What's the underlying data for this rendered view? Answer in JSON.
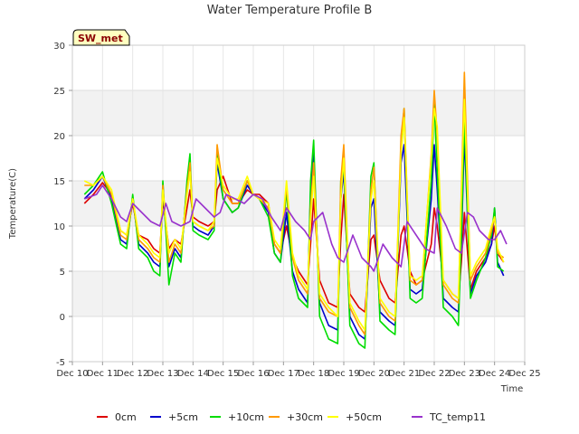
{
  "chart_data": {
    "type": "line",
    "title": "Water Temperature Profile B",
    "xlabel": "Time",
    "ylabel": "Temperature(C)",
    "badge": "SW_met",
    "ylim": [
      -5,
      30
    ],
    "xlim": [
      10,
      25
    ],
    "yticks": [
      -5,
      0,
      5,
      10,
      15,
      20,
      25,
      30
    ],
    "xticks": [
      {
        "value": 10,
        "label": "Dec 10"
      },
      {
        "value": 11,
        "label": "Dec 11"
      },
      {
        "value": 12,
        "label": "Dec 12"
      },
      {
        "value": 13,
        "label": "Dec 13"
      },
      {
        "value": 14,
        "label": "Dec 14"
      },
      {
        "value": 15,
        "label": "Dec 15"
      },
      {
        "value": 16,
        "label": "Dec 16"
      },
      {
        "value": 17,
        "label": "Dec 17"
      },
      {
        "value": 18,
        "label": "Dec 18"
      },
      {
        "value": 19,
        "label": "Dec 19"
      },
      {
        "value": 20,
        "label": "Dec 20"
      },
      {
        "value": 21,
        "label": "Dec 21"
      },
      {
        "value": 22,
        "label": "Dec 22"
      },
      {
        "value": 23,
        "label": "Dec 23"
      },
      {
        "value": 24,
        "label": "Dec 24"
      },
      {
        "value": 25,
        "label": "Dec 25"
      }
    ],
    "grid": true,
    "legend_position": "bottom",
    "series": [
      {
        "name": "0cm",
        "color": "#dd0000",
        "x": [
          10.4,
          10.7,
          11.0,
          11.3,
          11.6,
          11.8,
          12.0,
          12.2,
          12.5,
          12.7,
          12.9,
          13.0,
          13.2,
          13.4,
          13.6,
          13.8,
          13.9,
          14.0,
          14.2,
          14.5,
          14.7,
          14.8,
          15.0,
          15.3,
          15.5,
          15.8,
          16.0,
          16.2,
          16.5,
          16.7,
          16.9,
          17.1,
          17.3,
          17.5,
          17.8,
          17.9,
          18.0,
          18.2,
          18.5,
          18.8,
          18.9,
          19.0,
          19.2,
          19.5,
          19.7,
          19.9,
          20.0,
          20.2,
          20.5,
          20.7,
          20.9,
          21.0,
          21.2,
          21.4,
          21.6,
          21.9,
          22.0,
          22.1,
          22.3,
          22.6,
          22.8,
          22.9,
          23.0,
          23.2,
          23.4,
          23.7,
          23.9,
          24.0,
          24.1,
          24.3
        ],
        "y": [
          12.5,
          13.5,
          14.8,
          13.5,
          9.5,
          9.0,
          12.5,
          9.0,
          8.5,
          7.5,
          7.0,
          13.0,
          7.5,
          8.5,
          8.0,
          12.0,
          14.0,
          11.0,
          10.5,
          10.0,
          10.5,
          14.0,
          15.5,
          12.5,
          12.5,
          14.0,
          13.5,
          13.5,
          12.5,
          8.0,
          7.0,
          10.0,
          6.5,
          5.0,
          3.5,
          8.0,
          13.0,
          4.0,
          1.5,
          1.0,
          8.5,
          13.5,
          2.5,
          1.0,
          0.5,
          8.5,
          9.0,
          4.0,
          2.0,
          1.5,
          9.0,
          10.0,
          5.0,
          3.5,
          4.0,
          8.0,
          12.0,
          10.0,
          4.0,
          2.5,
          2.0,
          6.0,
          11.5,
          3.0,
          5.0,
          6.5,
          8.0,
          10.0,
          7.0,
          6.0
        ]
      },
      {
        "name": "+5cm",
        "color": "#0000cc",
        "x": [
          10.4,
          10.7,
          11.0,
          11.3,
          11.6,
          11.8,
          12.0,
          12.2,
          12.5,
          12.7,
          12.9,
          13.0,
          13.2,
          13.4,
          13.6,
          13.8,
          13.9,
          14.0,
          14.2,
          14.5,
          14.7,
          14.8,
          15.0,
          15.3,
          15.5,
          15.8,
          16.0,
          16.2,
          16.5,
          16.7,
          16.9,
          17.1,
          17.3,
          17.5,
          17.8,
          17.9,
          18.0,
          18.2,
          18.5,
          18.8,
          18.9,
          19.0,
          19.2,
          19.5,
          19.7,
          19.9,
          20.0,
          20.2,
          20.5,
          20.7,
          20.9,
          21.0,
          21.2,
          21.4,
          21.6,
          21.9,
          22.0,
          22.1,
          22.3,
          22.6,
          22.8,
          22.9,
          23.0,
          23.2,
          23.4,
          23.7,
          23.9,
          24.0,
          24.1,
          24.3
        ],
        "y": [
          13.0,
          14.0,
          15.5,
          13.0,
          8.5,
          8.0,
          13.0,
          8.0,
          7.0,
          6.0,
          5.5,
          14.0,
          5.5,
          7.5,
          6.5,
          14.5,
          16.5,
          10.0,
          9.5,
          9.0,
          10.0,
          17.0,
          13.0,
          11.5,
          12.0,
          14.5,
          13.5,
          13.0,
          11.5,
          7.0,
          6.0,
          11.5,
          5.0,
          3.0,
          1.5,
          14.0,
          18.0,
          1.5,
          -1.0,
          -1.5,
          13.0,
          16.0,
          0.0,
          -2.0,
          -2.5,
          12.0,
          13.0,
          0.5,
          -0.5,
          -1.0,
          17.0,
          19.0,
          3.0,
          2.5,
          3.0,
          13.0,
          19.0,
          14.0,
          2.0,
          1.0,
          0.5,
          8.0,
          20.0,
          2.5,
          4.5,
          6.0,
          8.0,
          12.0,
          6.0,
          4.5
        ]
      },
      {
        "name": "+10cm",
        "color": "#00dd00",
        "x": [
          10.4,
          10.7,
          11.0,
          11.3,
          11.6,
          11.8,
          12.0,
          12.2,
          12.5,
          12.7,
          12.9,
          13.0,
          13.2,
          13.4,
          13.6,
          13.8,
          13.9,
          14.0,
          14.2,
          14.5,
          14.7,
          14.8,
          15.0,
          15.3,
          15.5,
          15.8,
          16.0,
          16.2,
          16.5,
          16.7,
          16.9,
          17.1,
          17.3,
          17.5,
          17.8,
          17.9,
          18.0,
          18.2,
          18.5,
          18.8,
          18.9,
          19.0,
          19.2,
          19.5,
          19.7,
          19.9,
          20.0,
          20.2,
          20.5,
          20.7,
          20.9,
          21.0,
          21.2,
          21.4,
          21.6,
          21.9,
          22.0,
          22.1,
          22.3,
          22.6,
          22.8,
          22.9,
          23.0,
          23.2,
          23.4,
          23.7,
          23.9,
          24.0,
          24.1,
          24.3
        ],
        "y": [
          13.5,
          14.5,
          16.0,
          12.5,
          8.0,
          7.5,
          13.5,
          7.5,
          6.5,
          5.0,
          4.5,
          15.0,
          3.5,
          7.0,
          6.0,
          15.0,
          18.0,
          9.5,
          9.0,
          8.5,
          9.5,
          18.0,
          13.0,
          11.5,
          12.0,
          15.0,
          13.5,
          13.0,
          11.0,
          7.0,
          6.0,
          14.0,
          4.5,
          2.0,
          1.0,
          15.0,
          19.5,
          0.0,
          -2.5,
          -3.0,
          15.0,
          17.0,
          -1.0,
          -3.0,
          -3.5,
          15.5,
          17.0,
          -0.5,
          -1.5,
          -2.0,
          19.0,
          23.0,
          2.0,
          1.5,
          2.0,
          15.0,
          23.5,
          16.0,
          1.0,
          0.0,
          -1.0,
          9.0,
          22.0,
          2.0,
          4.0,
          6.5,
          9.0,
          12.0,
          5.5,
          5.0
        ]
      },
      {
        "name": "+30cm",
        "color": "#ff9900",
        "x": [
          10.4,
          10.7,
          11.0,
          11.3,
          11.6,
          11.8,
          12.0,
          12.2,
          12.5,
          12.7,
          12.9,
          13.0,
          13.2,
          13.4,
          13.6,
          13.8,
          13.9,
          14.0,
          14.2,
          14.5,
          14.7,
          14.8,
          15.0,
          15.3,
          15.5,
          15.8,
          16.0,
          16.2,
          16.5,
          16.7,
          16.9,
          17.1,
          17.3,
          17.5,
          17.8,
          17.9,
          18.0,
          18.2,
          18.5,
          18.8,
          18.9,
          19.0,
          19.2,
          19.5,
          19.7,
          19.9,
          20.0,
          20.2,
          20.5,
          20.7,
          20.9,
          21.0,
          21.2,
          21.4,
          21.6,
          21.9,
          22.0,
          22.1,
          22.3,
          22.6,
          22.8,
          22.9,
          23.0,
          23.2,
          23.4,
          23.7,
          23.9,
          24.0,
          24.1,
          24.3
        ],
        "y": [
          14.5,
          14.5,
          15.5,
          13.5,
          9.0,
          8.5,
          13.0,
          8.5,
          7.5,
          6.5,
          6.0,
          14.5,
          6.0,
          8.0,
          7.0,
          14.0,
          17.0,
          10.5,
          10.0,
          9.5,
          10.0,
          19.0,
          14.0,
          12.5,
          12.5,
          15.0,
          13.5,
          13.0,
          12.0,
          8.0,
          7.0,
          14.5,
          6.5,
          4.0,
          2.5,
          12.0,
          17.0,
          2.0,
          0.5,
          0.0,
          15.0,
          19.0,
          1.0,
          -1.0,
          -2.0,
          14.0,
          16.5,
          1.5,
          0.0,
          -0.5,
          20.0,
          23.0,
          4.0,
          3.5,
          4.0,
          18.0,
          25.0,
          20.0,
          3.5,
          2.0,
          1.5,
          14.0,
          27.0,
          4.0,
          5.5,
          7.0,
          9.5,
          11.0,
          7.0,
          6.5
        ]
      },
      {
        "name": "+50cm",
        "color": "#ffff00",
        "x": [
          10.4,
          10.7,
          11.0,
          11.3,
          11.6,
          11.8,
          12.0,
          12.2,
          12.5,
          12.7,
          12.9,
          13.0,
          13.2,
          13.4,
          13.6,
          13.8,
          13.9,
          14.0,
          14.2,
          14.5,
          14.7,
          14.8,
          15.0,
          15.3,
          15.5,
          15.8,
          16.0,
          16.2,
          16.5,
          16.7,
          16.9,
          17.1,
          17.3,
          17.5,
          17.8,
          17.9,
          18.0,
          18.2,
          18.5,
          18.8,
          18.9,
          19.0,
          19.2,
          19.5,
          19.7,
          19.9,
          20.0,
          20.2,
          20.5,
          20.7,
          20.9,
          21.0,
          21.2,
          21.4,
          21.6,
          21.9,
          22.0,
          22.1,
          22.3,
          22.6,
          22.8,
          22.9,
          23.0,
          23.2,
          23.4,
          23.7,
          23.9,
          24.0,
          24.1,
          24.3
        ],
        "y": [
          15.0,
          14.5,
          15.5,
          14.0,
          9.5,
          9.0,
          13.0,
          9.0,
          8.0,
          7.0,
          6.5,
          14.0,
          7.0,
          8.5,
          7.5,
          13.5,
          16.0,
          10.5,
          10.0,
          9.5,
          10.5,
          17.5,
          14.5,
          13.0,
          13.0,
          15.5,
          13.5,
          13.0,
          12.5,
          8.5,
          7.5,
          15.0,
          7.0,
          4.5,
          3.0,
          11.0,
          15.5,
          2.5,
          1.0,
          0.0,
          13.0,
          17.5,
          1.5,
          -0.5,
          -1.5,
          13.0,
          15.0,
          2.0,
          0.5,
          0.0,
          18.0,
          22.0,
          4.5,
          4.0,
          4.5,
          17.5,
          23.0,
          21.0,
          4.0,
          2.5,
          2.0,
          13.5,
          24.0,
          4.5,
          6.0,
          7.5,
          10.0,
          11.0,
          7.5,
          6.0
        ]
      },
      {
        "name": "TC_temp11",
        "color": "#9933cc",
        "x": [
          10.4,
          10.8,
          11.0,
          11.3,
          11.6,
          11.8,
          12.0,
          12.3,
          12.6,
          12.9,
          13.1,
          13.3,
          13.6,
          13.9,
          14.1,
          14.4,
          14.7,
          14.9,
          15.1,
          15.4,
          15.7,
          16.0,
          16.3,
          16.6,
          16.9,
          17.1,
          17.4,
          17.7,
          17.9,
          18.0,
          18.3,
          18.6,
          18.8,
          19.0,
          19.3,
          19.6,
          19.9,
          20.0,
          20.3,
          20.6,
          20.9,
          21.1,
          21.4,
          21.7,
          22.0,
          22.1,
          22.4,
          22.7,
          22.9,
          23.1,
          23.3,
          23.5,
          23.8,
          24.0,
          24.2,
          24.4
        ],
        "y": [
          13.0,
          13.5,
          14.5,
          13.0,
          11.0,
          10.5,
          12.5,
          11.5,
          10.5,
          10.0,
          12.5,
          10.5,
          10.0,
          10.5,
          13.0,
          12.0,
          11.0,
          11.5,
          13.5,
          13.0,
          12.5,
          13.5,
          13.0,
          11.0,
          9.5,
          12.0,
          10.5,
          9.5,
          8.5,
          10.5,
          11.5,
          8.0,
          6.5,
          6.0,
          9.0,
          6.5,
          5.5,
          5.0,
          8.0,
          6.5,
          5.5,
          10.5,
          9.0,
          7.5,
          7.0,
          12.0,
          10.0,
          7.5,
          7.0,
          11.5,
          11.0,
          9.5,
          8.5,
          8.5,
          9.5,
          8.0
        ]
      }
    ]
  }
}
